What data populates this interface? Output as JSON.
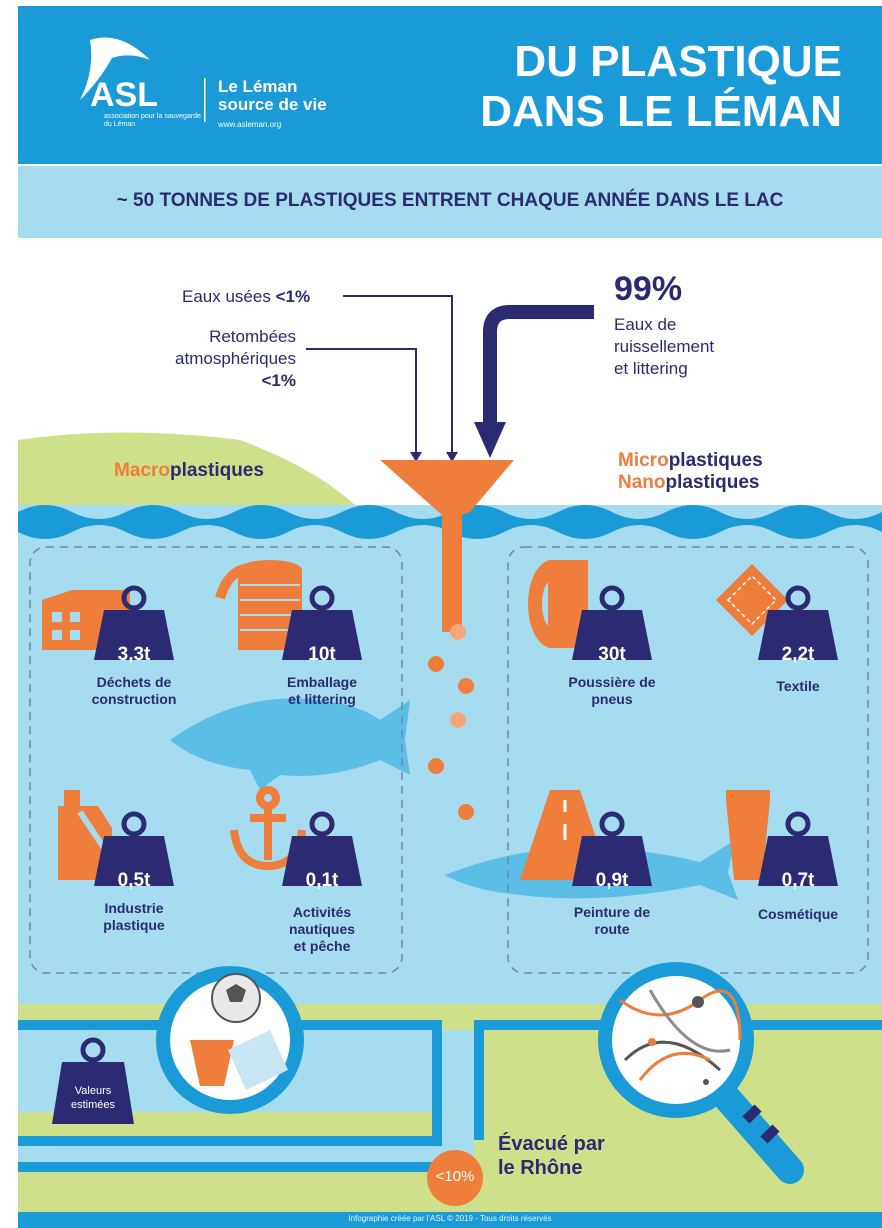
{
  "header": {
    "logo_text": "ASL",
    "logo_subtext": "association pour la sauvegarde du Léman",
    "brand_line1": "Le Léman",
    "brand_line2": "source de vie",
    "url": "www.asleman.org",
    "title_line1": "DU PLASTIQUE",
    "title_line2": "DANS LE LÉMAN"
  },
  "subtitle": "~ 50 TONNES DE PLASTIQUES ENTRENT CHAQUE ANNÉE DANS LE LAC",
  "sources": {
    "eaux_usees": {
      "label": "Eaux usées",
      "value": "<1%"
    },
    "retombees": {
      "line1": "Retombées",
      "line2": "atmosphériques",
      "value": "<1%"
    },
    "ruissellement": {
      "value": "99%",
      "line1": "Eaux de",
      "line2": "ruissellement",
      "line3": "et littering"
    }
  },
  "categories": {
    "macro": {
      "highlight": "Macro",
      "rest": "plastiques"
    },
    "micro": {
      "highlight": "Micro",
      "rest": "plastiques"
    },
    "nano": {
      "highlight": "Nano",
      "rest": "plastiques"
    }
  },
  "items": {
    "construction": {
      "value": "3,3t",
      "line1": "Déchets de",
      "line2": "construction",
      "icon": "brick-icon"
    },
    "emballage": {
      "value": "10t",
      "line1": "Emballage",
      "line2": "et littering",
      "icon": "packaging-icon"
    },
    "industrie": {
      "value": "0,5t",
      "line1": "Industrie",
      "line2": "plastique",
      "icon": "canister-icon"
    },
    "nautique": {
      "value": "0,1t",
      "line1": "Activités",
      "line2": "nautiques",
      "line3": "et pêche",
      "icon": "anchor-icon"
    },
    "pneus": {
      "value": "30t",
      "line1": "Poussière de",
      "line2": "pneus",
      "icon": "tire-icon"
    },
    "textile": {
      "value": "2,2t",
      "line1": "Textile",
      "icon": "fabric-icon"
    },
    "peinture": {
      "value": "0,9t",
      "line1": "Peinture de",
      "line2": "route",
      "icon": "road-icon"
    },
    "cosmetique": {
      "value": "0,7t",
      "line1": "Cosmétique",
      "icon": "tube-icon"
    }
  },
  "legend": {
    "line1": "Valeurs",
    "line2": "estimées"
  },
  "outflow": {
    "value": "<10%",
    "line1": "Évacué par",
    "line2": "le Rhône"
  },
  "footer": "Infographie créée par l'ASL © 2019 - Tous droits réservés",
  "colors": {
    "blue": "#1a9ad6",
    "light_blue": "#a6dcef",
    "navy": "#2b2a72",
    "orange": "#ef7d3c",
    "green": "#cfe08a"
  }
}
